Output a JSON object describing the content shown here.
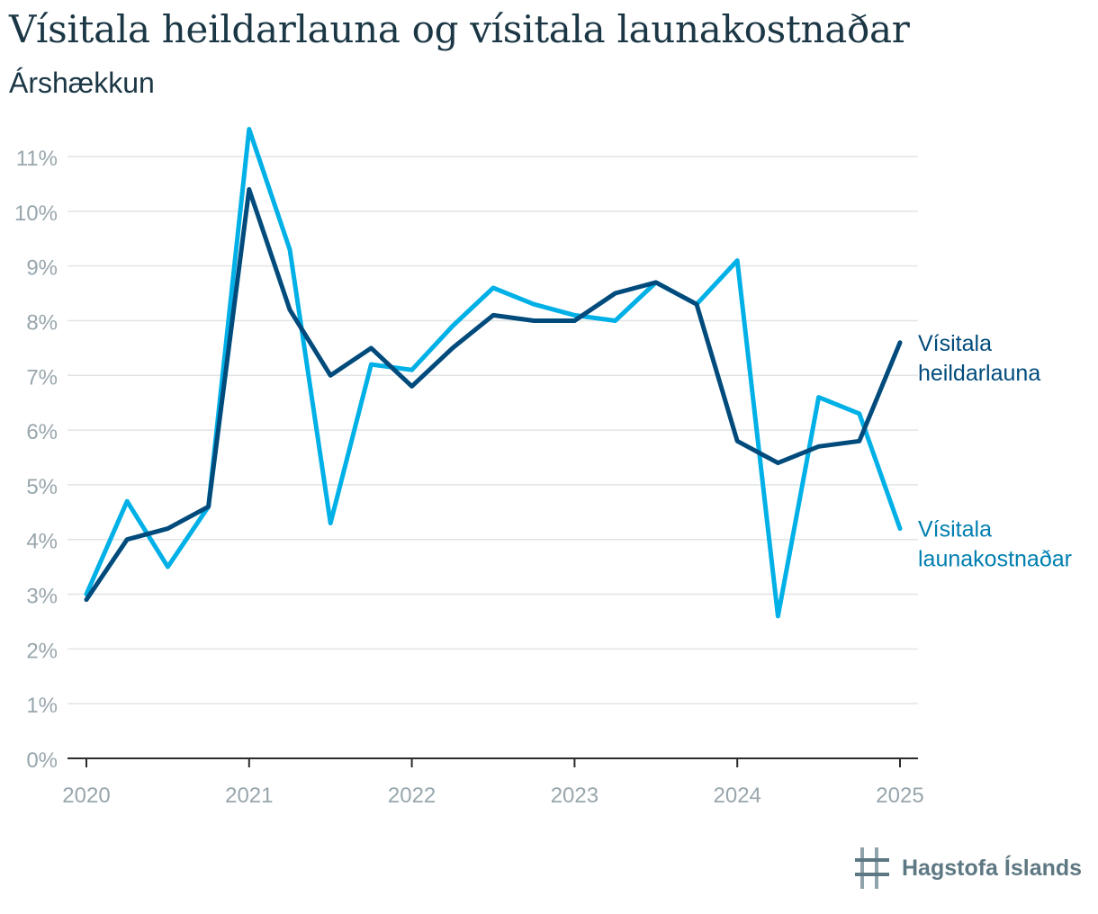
{
  "title": "Vísitala heildarlauna og vísitala launakostnaðar",
  "subtitle": "Árshækkun",
  "logo_text": "Hagstofa Íslands",
  "chart_data": {
    "type": "line",
    "x": [
      2020.0,
      2020.25,
      2020.5,
      2020.75,
      2021.0,
      2021.25,
      2021.5,
      2021.75,
      2022.0,
      2022.25,
      2022.5,
      2022.75,
      2023.0,
      2023.25,
      2023.5,
      2023.75,
      2024.0,
      2024.25,
      2024.5,
      2024.75,
      2025.0
    ],
    "xticks": [
      2020,
      2021,
      2022,
      2023,
      2024,
      2025
    ],
    "xtick_labels": [
      "2020",
      "2021",
      "2022",
      "2023",
      "2024",
      "2025"
    ],
    "xlim": [
      2020,
      2025
    ],
    "ylim": [
      0,
      11
    ],
    "yticks": [
      0,
      1,
      2,
      3,
      4,
      5,
      6,
      7,
      8,
      9,
      10,
      11
    ],
    "ytick_labels": [
      "0%",
      "1%",
      "2%",
      "3%",
      "4%",
      "5%",
      "6%",
      "7%",
      "8%",
      "9%",
      "10%",
      "11%"
    ],
    "grid": true,
    "legend": "labels at line ends (right)",
    "series": [
      {
        "name": "Vísitala launakostnaðar",
        "label_lines": [
          "Vísitala",
          "launakostnaðar"
        ],
        "color": "#00b0e6",
        "label_color": "#007fb0",
        "values": [
          3.0,
          4.7,
          3.5,
          4.6,
          11.5,
          9.3,
          4.3,
          7.2,
          7.1,
          7.9,
          8.6,
          8.3,
          8.1,
          8.0,
          8.7,
          8.3,
          9.1,
          2.6,
          6.6,
          6.3,
          4.2
        ]
      },
      {
        "name": "Vísitala heildarlauna",
        "label_lines": [
          "Vísitala",
          "heildarlauna"
        ],
        "color": "#004b7c",
        "label_color": "#004b7c",
        "values": [
          2.9,
          4.0,
          4.2,
          4.6,
          10.4,
          8.2,
          7.0,
          7.5,
          6.8,
          7.5,
          8.1,
          8.0,
          8.0,
          8.5,
          8.7,
          8.3,
          5.8,
          5.4,
          5.7,
          5.8,
          7.6
        ]
      }
    ]
  }
}
